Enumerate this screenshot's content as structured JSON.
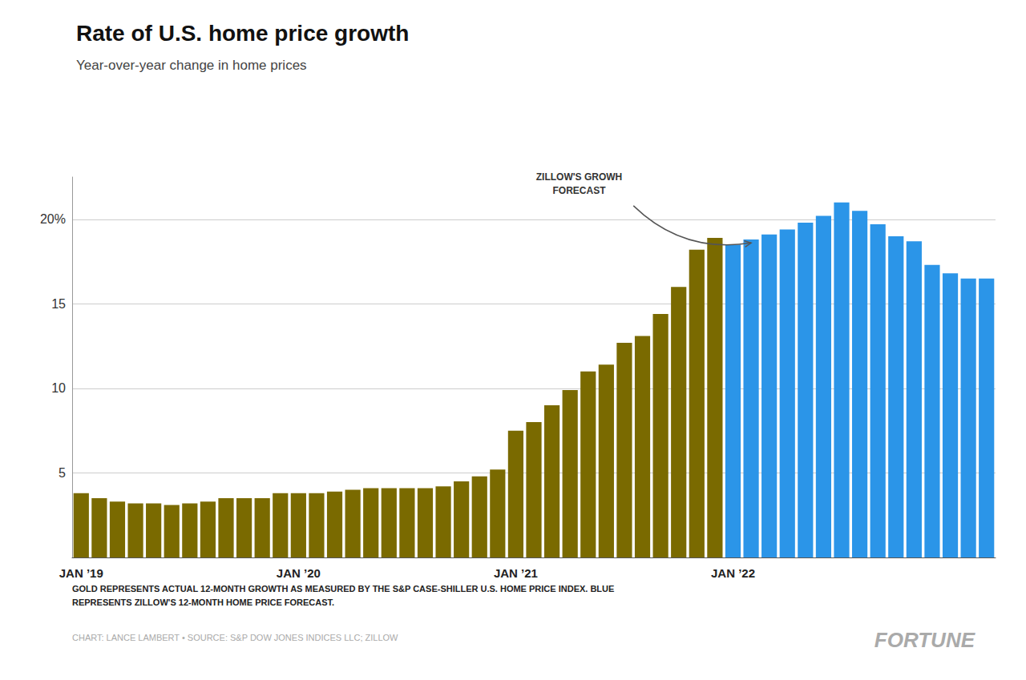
{
  "chart_data": {
    "type": "bar",
    "title": "Rate of U.S. home price growth",
    "subtitle": "Year-over-year change in home prices",
    "annotations": [
      "ZILLOW'S GROWH\nFORECAST"
    ],
    "footnotes": [
      "GOLD REPRESENTS ACTUAL 12-MONTH GROWTH AS MEASURED BY THE S&P CASE-SHILLER U.S. HOME PRICE INDEX. BLUE\nREPRESENTS ZILLOW'S 12-MONTH HOME PRICE FORECAST.",
      "CHART: LANCE LAMBERT • SOURCE: S&P DOW JONES INDICES LLC; ZILLOW",
      "FORTUNE"
    ],
    "categories": [
      "JAN ’19",
      null,
      null,
      null,
      null,
      null,
      null,
      null,
      null,
      null,
      null,
      null,
      "JAN ’20",
      null,
      null,
      null,
      null,
      null,
      null,
      null,
      null,
      null,
      null,
      null,
      "JAN ’21",
      null,
      null,
      null,
      null,
      null,
      null,
      null,
      null,
      null,
      null,
      null,
      "JAN ’22",
      null,
      null,
      null,
      null,
      null,
      null,
      null,
      null,
      null,
      null,
      null,
      null,
      null,
      null
    ],
    "series": [
      {
        "color": "#7a6a00",
        "values": [
          3.8,
          3.5,
          3.3,
          3.2,
          3.2,
          3.1,
          3.2,
          3.3,
          3.5,
          3.5,
          3.5,
          3.8,
          3.8,
          3.8,
          3.9,
          4.0,
          4.1,
          4.1,
          4.1,
          4.1,
          4.2,
          4.5,
          4.8,
          5.2,
          7.5,
          8.0,
          9.0,
          9.9,
          11.0,
          11.4,
          12.7,
          13.1,
          14.4,
          16.0,
          18.2,
          18.9,
          null,
          null,
          null,
          null,
          null,
          null,
          null,
          null,
          null,
          null,
          null,
          null,
          null,
          null,
          null
        ]
      },
      {
        "color": "#2b95e8",
        "values": [
          null,
          null,
          null,
          null,
          null,
          null,
          null,
          null,
          null,
          null,
          null,
          null,
          null,
          null,
          null,
          null,
          null,
          null,
          null,
          null,
          null,
          null,
          null,
          null,
          null,
          null,
          null,
          null,
          null,
          null,
          null,
          null,
          null,
          null,
          null,
          null,
          18.5,
          18.8,
          19.1,
          19.4,
          19.8,
          20.2,
          21.0,
          20.5,
          19.7,
          19.0,
          18.7,
          17.3,
          16.8,
          16.5,
          16.5
        ]
      }
    ],
    "ylim": [
      0,
      22.5
    ],
    "yticks": [
      5,
      10,
      15,
      {
        "value": 20,
        "label": "20%"
      }
    ],
    "grid": true
  }
}
